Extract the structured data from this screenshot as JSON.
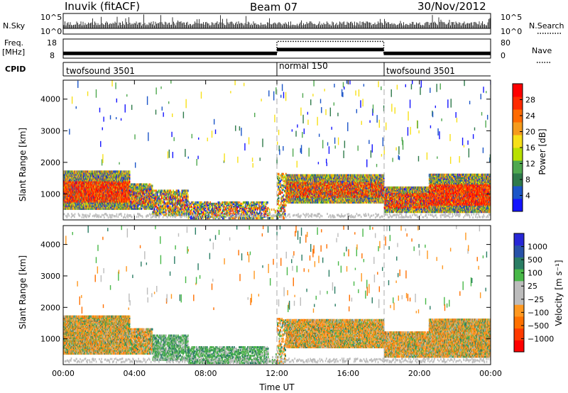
{
  "header": {
    "station": "Inuvik (fitACF)",
    "beam": "Beam 07",
    "date": "30/Nov/2012"
  },
  "strip_panels": {
    "nsky_label": "N.Sky",
    "nsky_ticks": [
      "10^5",
      "10^0"
    ],
    "nsearch_label": "N.Search",
    "nsearch_ticks": [
      "10^5",
      "10^0"
    ],
    "freq_label": "Freq.",
    "freq_unit": "[MHz]",
    "freq_ticks": [
      "18",
      "8"
    ],
    "nave_label": "Nave",
    "nave_ticks": [
      "80",
      "0"
    ],
    "cpid_label": "CPID",
    "cpid_segments": [
      {
        "name": "twofsound 3501",
        "start_h": 0,
        "end_h": 12
      },
      {
        "name": "normal 150",
        "start_h": 12,
        "end_h": 18
      },
      {
        "name": "twofsound 3501",
        "start_h": 18,
        "end_h": 24
      }
    ],
    "freq_low_mhz": 10.5,
    "freq_normal_mhz": 12.5,
    "nave_low": 22,
    "nave_normal": 70
  },
  "chart_data": [
    {
      "type": "heatmap",
      "name": "power-panel",
      "xlabel": "Time UT",
      "ylabel": "Slant Range [km]",
      "xlim": [
        0,
        24
      ],
      "ylim": [
        180,
        4600
      ],
      "x_ticks": [
        "00:00",
        "04:00",
        "08:00",
        "12:00",
        "16:00",
        "20:00",
        "00:00"
      ],
      "y_ticks": [
        1000,
        2000,
        3000,
        4000
      ],
      "colorbar": {
        "label": "Power [dB]",
        "ticks": [
          "4",
          "8",
          "12",
          "16",
          "20",
          "24",
          "28"
        ],
        "colors": [
          "#1414ff",
          "#1b55c8",
          "#2e7a4a",
          "#4fa84f",
          "#b8e000",
          "#f7e018",
          "#f59b1c",
          "#ff6a00",
          "#ff2a00",
          "#ff0000"
        ]
      },
      "scatter_color": "#bdbdbd",
      "dominant_region": {
        "time_h": [
          0,
          3.7
        ],
        "range_km": [
          600,
          1600
        ],
        "power_db": 28
      }
    },
    {
      "type": "heatmap",
      "name": "velocity-panel",
      "xlabel": "Time UT",
      "ylabel": "Slant Range [km]",
      "xlim": [
        0,
        24
      ],
      "ylim": [
        180,
        4600
      ],
      "x_ticks": [
        "00:00",
        "04:00",
        "08:00",
        "12:00",
        "16:00",
        "20:00",
        "00:00"
      ],
      "y_ticks": [
        1000,
        2000,
        3000,
        4000
      ],
      "colorbar": {
        "label": "Velocity [m s⁻¹]",
        "ticks": [
          "1000",
          "500",
          "100",
          "25",
          "−25",
          "−100",
          "−500",
          "−1000"
        ],
        "colors": [
          "#2727d6",
          "#2852a8",
          "#2a7d64",
          "#48b848",
          "#bcbcbc",
          "#bcbcbc",
          "#ff9820",
          "#ff7000",
          "#ff3a00",
          "#ff0000"
        ]
      },
      "dominant_region": {
        "time_h": [
          0,
          3.7
        ],
        "range_km": [
          600,
          1600
        ],
        "velocity_ms": -200
      }
    }
  ]
}
